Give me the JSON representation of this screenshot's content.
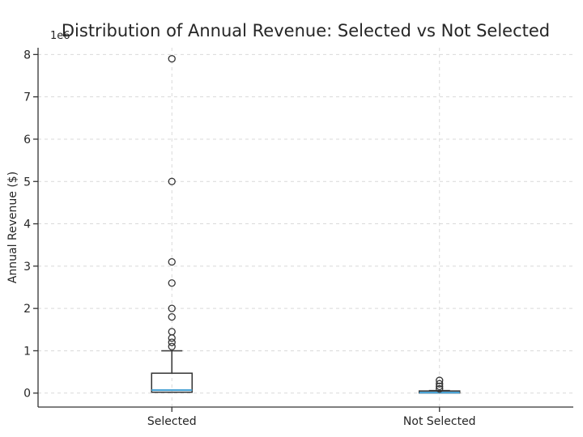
{
  "figure": {
    "background": "#ffffff"
  },
  "chart_data": {
    "type": "boxplot",
    "title": "Distribution of Annual Revenue: Selected vs Not Selected",
    "ylabel": "Annual Revenue ($)",
    "offset_text": "1e6",
    "unit_multiplier": 1000000,
    "categories": [
      "Selected",
      "Not Selected"
    ],
    "yticks": [
      0,
      1,
      2,
      3,
      4,
      5,
      6,
      7,
      8
    ],
    "ylim": [
      -0.33,
      8.16
    ],
    "grid": {
      "horizontal": true,
      "vertical": true,
      "style": "dashed"
    },
    "legend": "none",
    "series": [
      {
        "name": "Selected",
        "whisker_low": 0.02,
        "q1": 0.02,
        "median": 0.07,
        "q3": 0.47,
        "whisker_high": 1.0,
        "outliers": [
          1.1,
          1.2,
          1.3,
          1.45,
          1.8,
          2.0,
          2.6,
          3.1,
          5.0,
          7.9
        ]
      },
      {
        "name": "Not Selected",
        "whisker_low": 0.003,
        "q1": 0.003,
        "median": 0.012,
        "q3": 0.05,
        "whisker_high": 0.06,
        "outliers": [
          0.1,
          0.16,
          0.22,
          0.3
        ]
      }
    ],
    "colors": {
      "grid": "#d9d9d9",
      "spine": "#333333",
      "box_edge": "#333333",
      "median": "#4aa3d5",
      "outlier_edge": "#333333",
      "text": "#262626"
    }
  }
}
